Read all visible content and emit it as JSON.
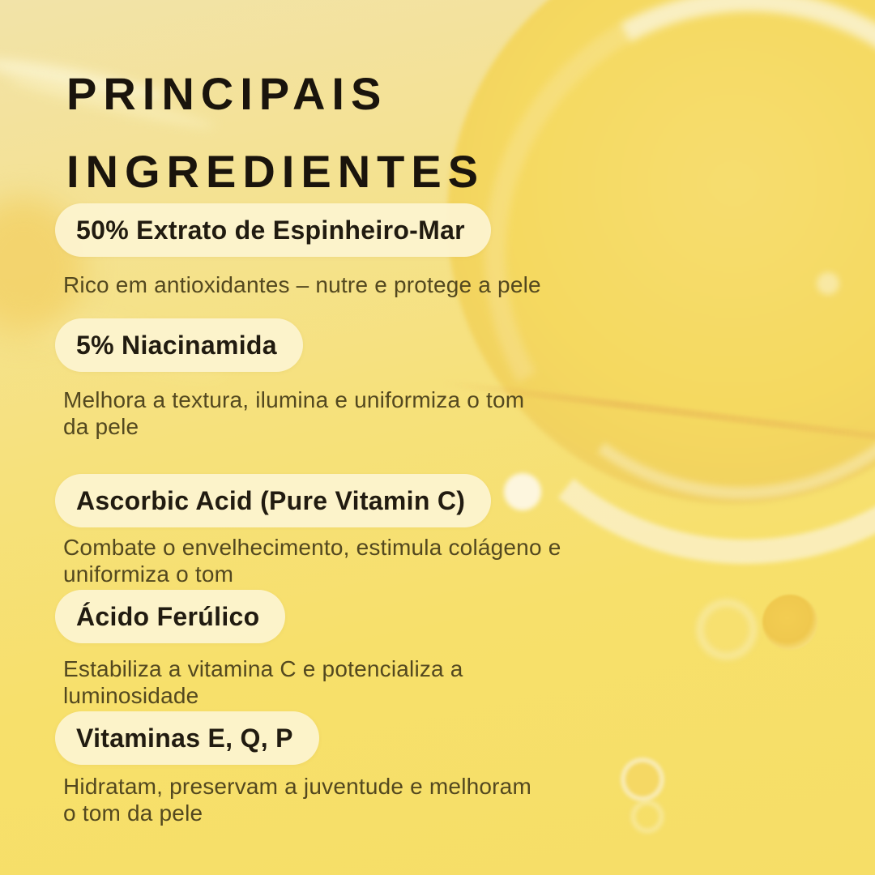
{
  "poster": {
    "title_line1": "PRINCIPAIS",
    "title_line2": "INGREDIENTES"
  },
  "ingredients": [
    {
      "name": "50% Extrato de Espinheiro-Mar",
      "description": "Rico em antioxidantes – nutre e protege a pele"
    },
    {
      "name": "5% Niacinamida",
      "description": "Melhora a textura, ilumina e uniformiza o tom da pele"
    },
    {
      "name": "Ascorbic Acid (Pure Vitamin C)",
      "description": "Combate o envelhecimento, estimula colágeno e uniformiza o tom"
    },
    {
      "name": "Ácido Ferúlico",
      "description": "Estabiliza a vitamina C e potencializa a luminosidade"
    },
    {
      "name": "Vitaminas E, Q, P",
      "description": "Hidratam, preservam a juventude e melhoram o tom da pele"
    }
  ],
  "palette": {
    "background_top": "#f2e3a8",
    "background_bottom": "#f6de67",
    "bubble_gold": "#f5d960",
    "bubble_highlight": "#faf1ca",
    "pill_background": "#fcf3cf",
    "title_text": "#1a140c",
    "pill_text": "#211b10",
    "description_text": "#53481f"
  }
}
